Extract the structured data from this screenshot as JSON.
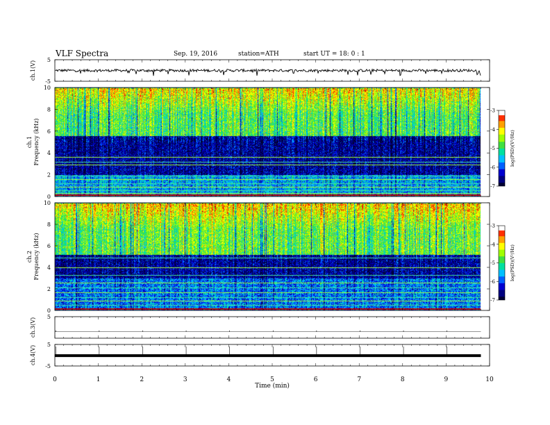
{
  "header": {
    "title": "VLF  Spectra",
    "date": "Sep. 19, 2016",
    "station": "station=ATH",
    "start_ut": "start  UT  =    18: 0  : 1"
  },
  "colors": {
    "trace": "#000000",
    "axis": "#000000",
    "colormap": [
      "#000033",
      "#000080",
      "#0000d0",
      "#0060ff",
      "#00c0ff",
      "#00e0a0",
      "#40e040",
      "#a0ff00",
      "#ffff00",
      "#ffa000",
      "#ff3000",
      "#c00000",
      "#ffffff"
    ]
  },
  "chart_data": [
    {
      "type": "line",
      "panel": "ch1-waveform",
      "ylabel": "ch.1(V)",
      "ylim": [
        -5,
        5
      ],
      "yticks": [
        "5",
        "-5"
      ],
      "x_unit": "min",
      "xlim": [
        0,
        9.8
      ],
      "baseline": 0,
      "description_values": {
        "noise_amplitude": 0.6,
        "spike_min": -2.5
      }
    },
    {
      "type": "heatmap",
      "panel": "ch1-spectrogram",
      "ylabel": "ch.1\nFrequency (kHz)",
      "ylim": [
        0,
        10
      ],
      "yticks": [
        "0",
        "2",
        "4",
        "6",
        "8",
        "10"
      ],
      "xlim": [
        0,
        9.8
      ],
      "colorbar": {
        "label": "log(PSD)(V²/Hz)",
        "range": [
          -7,
          -3
        ],
        "ticks": [
          "-3",
          "-4",
          "-5",
          "-6",
          "-7"
        ]
      },
      "bands_khz": [
        {
          "from": 0,
          "to": 2,
          "level": -5.6
        },
        {
          "from": 2,
          "to": 5.6,
          "level": -6.5
        },
        {
          "from": 5.6,
          "to": 10,
          "level": -4.8
        }
      ]
    },
    {
      "type": "heatmap",
      "panel": "ch2-spectrogram",
      "ylabel": "ch.2\nFrequency (kHz)",
      "ylim": [
        0,
        10
      ],
      "yticks": [
        "0",
        "2",
        "4",
        "6",
        "8",
        "10"
      ],
      "xlim": [
        0,
        9.8
      ],
      "colorbar": {
        "label": "log(PSD)(V²/Hz)",
        "range": [
          -7,
          -3
        ],
        "ticks": [
          "-3",
          "-4",
          "-5",
          "-6",
          "-7"
        ]
      },
      "bands_khz": [
        {
          "from": 0,
          "to": 3,
          "level": -5.8
        },
        {
          "from": 3,
          "to": 5.2,
          "level": -6.5
        },
        {
          "from": 5.2,
          "to": 10,
          "level": -4.7
        }
      ]
    },
    {
      "type": "line",
      "panel": "ch3-waveform",
      "ylabel": "ch.3(V)",
      "ylim": [
        -5,
        5
      ],
      "yticks": [
        "5"
      ],
      "xlim": [
        0,
        9.8
      ],
      "baseline": -2
    },
    {
      "type": "line",
      "panel": "ch4-waveform",
      "ylabel": "ch.4(V)",
      "ylim": [
        -5,
        5
      ],
      "yticks": [
        "5",
        "-5"
      ],
      "xlim": [
        0,
        9.8
      ],
      "baseline": -0.2
    }
  ],
  "xaxis": {
    "label": "Time  (min)",
    "range": [
      0,
      10
    ],
    "ticks": [
      "0",
      "1",
      "2",
      "3",
      "4",
      "5",
      "6",
      "7",
      "8",
      "9",
      "10"
    ]
  }
}
